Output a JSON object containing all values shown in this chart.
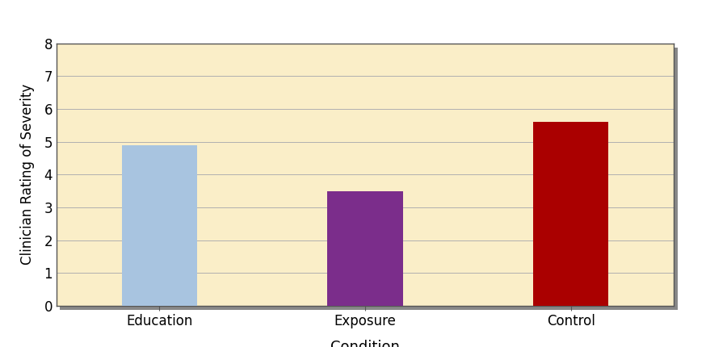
{
  "categories": [
    "Education",
    "Exposure",
    "Control"
  ],
  "values": [
    4.9,
    3.5,
    5.6
  ],
  "bar_colors": [
    "#a8c4e0",
    "#7b2d8b",
    "#aa0000"
  ],
  "bar_width": 0.55,
  "xlabel": "Condition",
  "ylabel": "Clinician Rating of Severity",
  "ylim": [
    0,
    8
  ],
  "yticks": [
    0,
    1,
    2,
    3,
    4,
    5,
    6,
    7,
    8
  ],
  "background_color": "#ffffff",
  "plot_bg_color": "#faeec8",
  "grid_color": "#b0b0b0",
  "xlabel_fontsize": 13,
  "ylabel_fontsize": 12,
  "tick_fontsize": 12,
  "bar_positions": [
    1,
    2.5,
    4
  ]
}
